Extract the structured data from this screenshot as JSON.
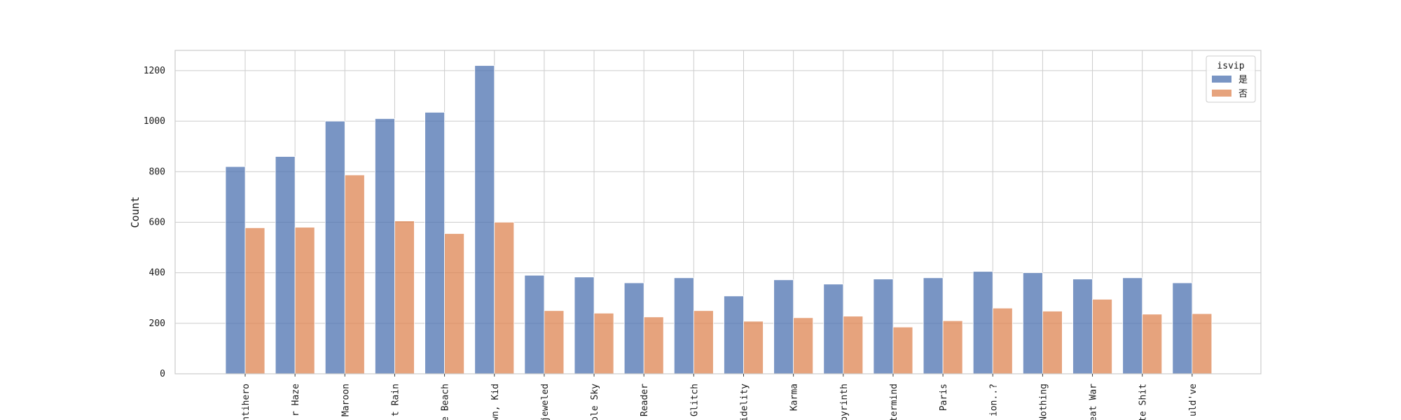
{
  "chart_data": {
    "type": "bar",
    "categories": [
      "ntihero",
      "r Haze",
      "Maroon",
      "t Rain",
      "e Beach",
      "wn, Kid",
      "jeweled",
      "ole Sky",
      "Reader",
      "Glitch",
      "idelity",
      "Karma",
      "byrinth",
      "termind",
      "Paris",
      "ion..?",
      "Nothing",
      "eat War",
      "te Shit",
      "uld've"
    ],
    "series": [
      {
        "name": "是",
        "color": "#4c72b0",
        "values": [
          820,
          860,
          1000,
          1010,
          1035,
          1220,
          390,
          383,
          360,
          380,
          308,
          372,
          355,
          375,
          380,
          405,
          400,
          375,
          380,
          360
        ]
      },
      {
        "name": "否",
        "color": "#dd8452",
        "values": [
          578,
          580,
          787,
          605,
          555,
          600,
          250,
          240,
          225,
          250,
          208,
          222,
          228,
          185,
          210,
          260,
          248,
          295,
          236,
          238
        ]
      }
    ],
    "xlabel": "",
    "ylabel": "Count",
    "ylim": [
      0,
      1280
    ],
    "yticks": [
      0,
      200,
      400,
      600,
      800,
      1000,
      1200
    ],
    "legend_title": "isvip",
    "legend_position": "top-right",
    "grid": true
  }
}
